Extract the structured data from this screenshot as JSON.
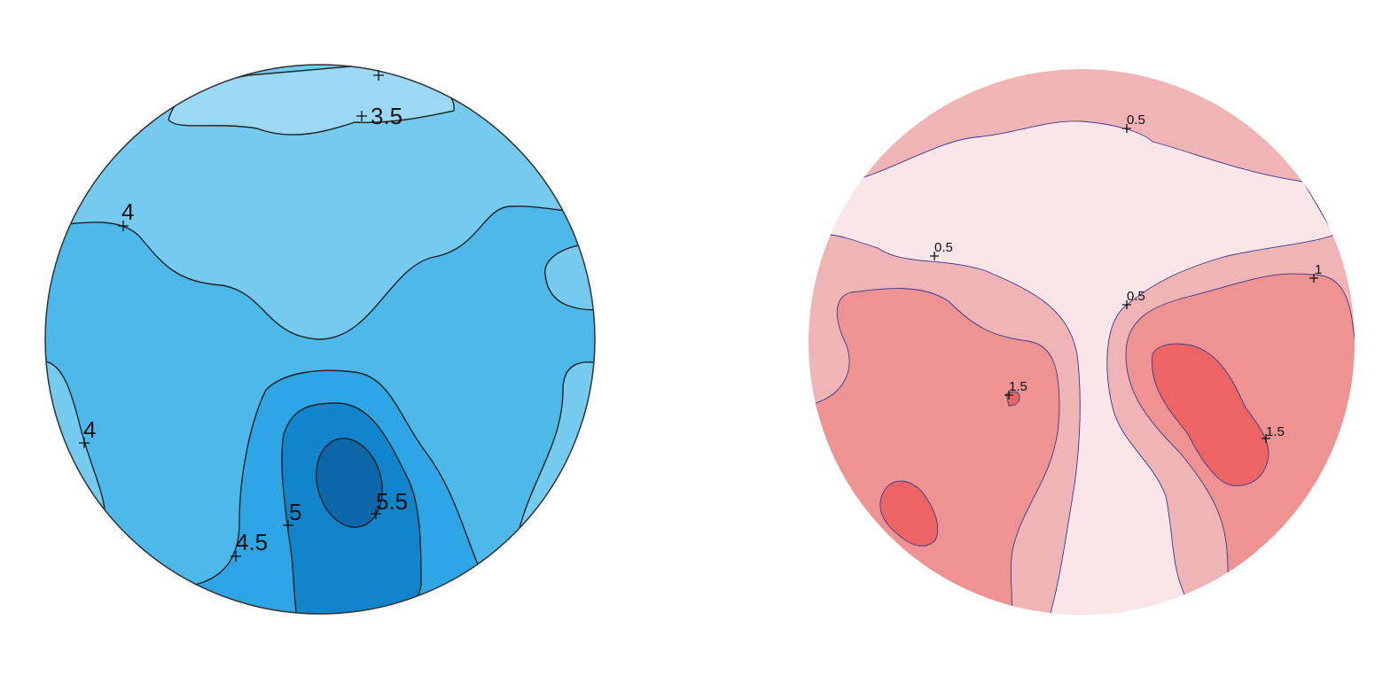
{
  "plots": [
    {
      "labels": [
        "3.5",
        "4",
        "4",
        "4.5",
        "5",
        "5.5"
      ]
    },
    {
      "labels": [
        "0.5",
        "0.5",
        "0.5",
        "1",
        "1.5",
        "1.5"
      ]
    }
  ]
}
